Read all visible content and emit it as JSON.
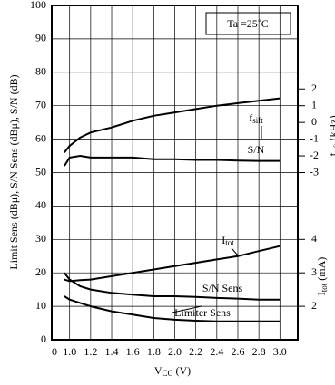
{
  "chart_data": {
    "type": "line",
    "ylabel": "Limit Sens (dBμ), S/N Sens (dBμ), S/N (dB)",
    "xlabel": {
      "main": "V",
      "sub": "CC",
      "unit": " (V)"
    },
    "x_origin_label": "0",
    "x": [
      0.95,
      1.0,
      1.1,
      1.2,
      1.4,
      1.6,
      1.8,
      2.0,
      2.2,
      2.4,
      2.6,
      2.8,
      3.0
    ],
    "xlim": [
      0.83,
      3.17
    ],
    "xticks": [
      {
        "value": 1.0,
        "label": "1.0"
      },
      1.2,
      1.4,
      1.6,
      1.8,
      {
        "value": 2.0,
        "label": "2.0"
      },
      2.2,
      2.4,
      2.6,
      2.8,
      {
        "value": 3.0,
        "label": "3.0"
      }
    ],
    "ylim": [
      0,
      100
    ],
    "yticks": [
      0,
      10,
      20,
      30,
      40,
      50,
      60,
      70,
      80,
      90,
      100
    ],
    "y2lim": [
      -13,
      7
    ],
    "y2ticks": [
      -3,
      -2,
      -1,
      0,
      1,
      2
    ],
    "y2label": {
      "main": "f",
      "sub": "sift",
      "unit": " (kHz)"
    },
    "y3lim": [
      1,
      11
    ],
    "y3ticks": [
      2,
      3,
      4
    ],
    "y3label": {
      "main": "I",
      "sub": "tot",
      "unit": " (mA)"
    },
    "grid": true,
    "annotation": "Ta =25˚C",
    "series": [
      {
        "name": "f",
        "name_sub": "sift",
        "axis": "y2",
        "color": "#000000",
        "values": [
          -1.8,
          -1.4,
          -0.9,
          -0.6,
          -0.3,
          0.1,
          0.4,
          0.6,
          0.8,
          1.0,
          1.15,
          1.3,
          1.44
        ]
      },
      {
        "name": "S/N",
        "color": "#000000",
        "values": [
          52,
          54.5,
          55,
          54.5,
          54.5,
          54.5,
          54,
          54,
          53.8,
          53.8,
          53.6,
          53.5,
          53.5
        ]
      },
      {
        "name": "I",
        "name_sub": "tot",
        "axis": "y3",
        "color": "#000000",
        "values": [
          2.8,
          2.75,
          2.78,
          2.8,
          2.9,
          3.0,
          3.1,
          3.2,
          3.3,
          3.4,
          3.5,
          3.65,
          3.8
        ]
      },
      {
        "name": "S/N Sens",
        "color": "#000000",
        "values": [
          20,
          18,
          16,
          15,
          14,
          13.5,
          13,
          13,
          12.8,
          12.5,
          12.3,
          12,
          12
        ]
      },
      {
        "name": "Limiter Sens",
        "color": "#000000",
        "values": [
          13,
          12,
          11,
          10,
          8.5,
          7.5,
          6.5,
          6,
          5.7,
          5.5,
          5.5,
          5.5,
          5.5
        ]
      }
    ]
  }
}
